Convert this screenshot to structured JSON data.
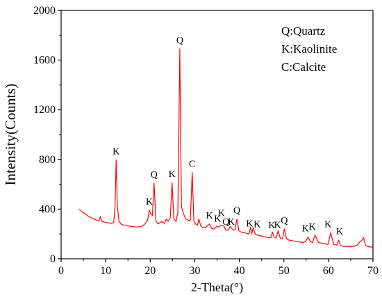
{
  "chart_data": {
    "type": "line",
    "xlabel": "2-Theta(°)",
    "ylabel": "Intensity(Counts)",
    "xlim": [
      0,
      70
    ],
    "ylim": [
      0,
      2000
    ],
    "xticks": [
      0,
      10,
      20,
      30,
      40,
      50,
      60,
      70
    ],
    "yticks": [
      0,
      400,
      800,
      1200,
      1600,
      2000
    ],
    "grid": false,
    "line_color": "#ff0000",
    "legend": {
      "placement": "top-right",
      "entries": [
        "Q:Quartz",
        "K:Kaolinite",
        "C:Calcite"
      ]
    },
    "series": [
      {
        "x": [
          4.0,
          4.5,
          5.0,
          5.5,
          6.0,
          6.5,
          7.0,
          7.5,
          8.0,
          8.5,
          8.8,
          9.2,
          9.8,
          10.5,
          11.2,
          11.8,
          12.1,
          12.35,
          12.6,
          13.0,
          13.6,
          14.3,
          15.0,
          15.8,
          16.5,
          17.3,
          18.0,
          18.8,
          19.4,
          19.8,
          20.1,
          20.5,
          20.86,
          21.3,
          21.8,
          22.5,
          23.2,
          23.6,
          24.0,
          24.5,
          24.9,
          25.3,
          25.8,
          26.2,
          26.64,
          27.0,
          27.5,
          28.0,
          28.5,
          29.0,
          29.42,
          29.8,
          30.2,
          30.6,
          30.9,
          31.3,
          31.8,
          32.4,
          32.9,
          33.3,
          33.8,
          34.3,
          34.9,
          35.4,
          35.9,
          36.5,
          37.0,
          37.5,
          38.0,
          38.5,
          39.0,
          39.45,
          39.9,
          40.4,
          41.0,
          41.6,
          42.2,
          42.5,
          42.8,
          43.1,
          43.6,
          44.2,
          44.8,
          45.4,
          46.0,
          46.6,
          47.1,
          47.4,
          47.8,
          48.3,
          48.7,
          49.2,
          49.7,
          50.1,
          50.6,
          51.2,
          52.0,
          52.8,
          53.6,
          54.3,
          54.9,
          55.4,
          55.9,
          56.4,
          57.0,
          57.8,
          58.6,
          59.3,
          59.9,
          60.5,
          61.2,
          61.9,
          62.3,
          62.7,
          63.4,
          64.2,
          65.0,
          65.8,
          66.5,
          67.0,
          67.5,
          67.9,
          68.3,
          68.8,
          69.3,
          70.0
        ],
        "y": [
          400,
          385,
          370,
          360,
          345,
          335,
          325,
          318,
          312,
          305,
          340,
          300,
          295,
          290,
          285,
          290,
          420,
          795,
          430,
          300,
          275,
          270,
          265,
          260,
          258,
          256,
          260,
          280,
          310,
          390,
          360,
          350,
          610,
          300,
          280,
          300,
          285,
          320,
          300,
          330,
          615,
          320,
          300,
          370,
          1690,
          420,
          360,
          320,
          310,
          310,
          695,
          300,
          280,
          270,
          320,
          270,
          250,
          255,
          265,
          280,
          245,
          240,
          260,
          255,
          270,
          265,
          230,
          230,
          260,
          235,
          230,
          320,
          225,
          215,
          210,
          205,
          200,
          255,
          200,
          250,
          195,
          190,
          185,
          180,
          175,
          170,
          170,
          215,
          175,
          170,
          225,
          165,
          160,
          240,
          160,
          150,
          145,
          140,
          135,
          130,
          140,
          175,
          140,
          130,
          190,
          130,
          125,
          120,
          115,
          210,
          115,
          110,
          150,
          105,
          100,
          100,
          100,
          100,
          110,
          135,
          150,
          170,
          110,
          100,
          95,
          95
        ]
      }
    ],
    "annotations": [
      {
        "text": "K",
        "x": 12.35,
        "y": 795
      },
      {
        "text": "K",
        "x": 19.8,
        "y": 390
      },
      {
        "text": "Q",
        "x": 20.86,
        "y": 610
      },
      {
        "text": "K",
        "x": 24.9,
        "y": 615
      },
      {
        "text": "Q",
        "x": 26.64,
        "y": 1690
      },
      {
        "text": "C",
        "x": 29.42,
        "y": 695
      },
      {
        "text": "K",
        "x": 33.3,
        "y": 280
      },
      {
        "text": "K",
        "x": 35.1,
        "y": 255
      },
      {
        "text": "K",
        "x": 36.0,
        "y": 300
      },
      {
        "text": "Q",
        "x": 37.0,
        "y": 230
      },
      {
        "text": "K",
        "x": 38.2,
        "y": 230
      },
      {
        "text": "Q",
        "x": 39.45,
        "y": 320
      },
      {
        "text": "K",
        "x": 42.3,
        "y": 215
      },
      {
        "text": "K",
        "x": 44.0,
        "y": 210
      },
      {
        "text": "K",
        "x": 47.3,
        "y": 200
      },
      {
        "text": "K",
        "x": 48.6,
        "y": 205
      },
      {
        "text": "Q",
        "x": 50.1,
        "y": 240
      },
      {
        "text": "K",
        "x": 54.8,
        "y": 175
      },
      {
        "text": "K",
        "x": 56.4,
        "y": 190
      },
      {
        "text": "K",
        "x": 59.9,
        "y": 210
      },
      {
        "text": "K",
        "x": 62.5,
        "y": 150
      }
    ]
  }
}
